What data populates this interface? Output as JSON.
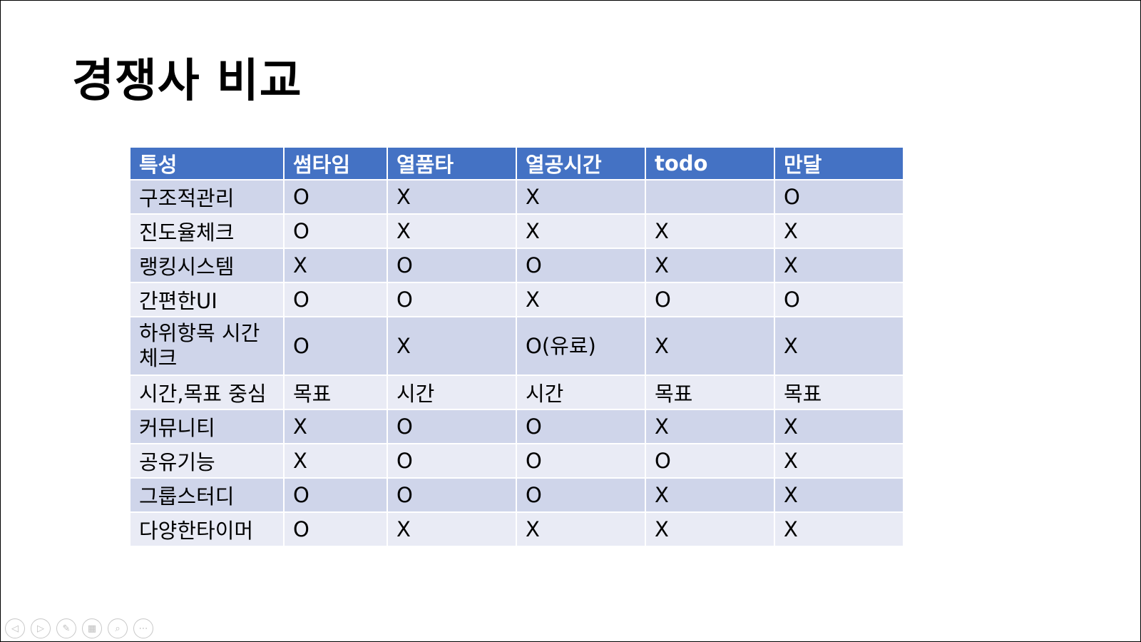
{
  "slide": {
    "title": "경쟁사 비교"
  },
  "table": {
    "headers": [
      "특성",
      "썸타임",
      "열품타",
      "열공시간",
      "todo",
      "만달"
    ],
    "rows": [
      {
        "label": "구조적관리",
        "values": [
          "O",
          "X",
          "X",
          "",
          "O"
        ]
      },
      {
        "label": "진도율체크",
        "values": [
          "O",
          "X",
          "X",
          "X",
          "X"
        ]
      },
      {
        "label": "랭킹시스템",
        "values": [
          "X",
          "O",
          "O",
          "X",
          "X"
        ]
      },
      {
        "label": "간편한UI",
        "values": [
          "O",
          "O",
          "X",
          "O",
          "O"
        ]
      },
      {
        "label": "하위항목 시간 체크",
        "values": [
          "O",
          "X",
          "O(유료)",
          "X",
          "X"
        ]
      },
      {
        "label": "시간,목표 중심",
        "values": [
          "목표",
          "시간",
          "시간",
          "목표",
          "목표"
        ]
      },
      {
        "label": "커뮤니티",
        "values": [
          "X",
          "O",
          "O",
          "X",
          "X"
        ]
      },
      {
        "label": "공유기능",
        "values": [
          "X",
          "O",
          "O",
          "O",
          "X"
        ]
      },
      {
        "label": "그룹스터디",
        "values": [
          "O",
          "O",
          "O",
          "X",
          "X"
        ]
      },
      {
        "label": "다양한타이머",
        "values": [
          "O",
          "X",
          "X",
          "X",
          "X"
        ]
      }
    ]
  },
  "colors": {
    "header_bg": "#4472c4",
    "row_odd": "#cfd5ea",
    "row_even": "#e9ebf5"
  },
  "controls": [
    {
      "icon": "previous-slide-icon",
      "glyph": "◁"
    },
    {
      "icon": "next-slide-icon",
      "glyph": "▷"
    },
    {
      "icon": "pen-icon",
      "glyph": "✎"
    },
    {
      "icon": "slides-grid-icon",
      "glyph": "▦"
    },
    {
      "icon": "zoom-icon",
      "glyph": "⌕"
    },
    {
      "icon": "more-options-icon",
      "glyph": "⋯"
    }
  ]
}
